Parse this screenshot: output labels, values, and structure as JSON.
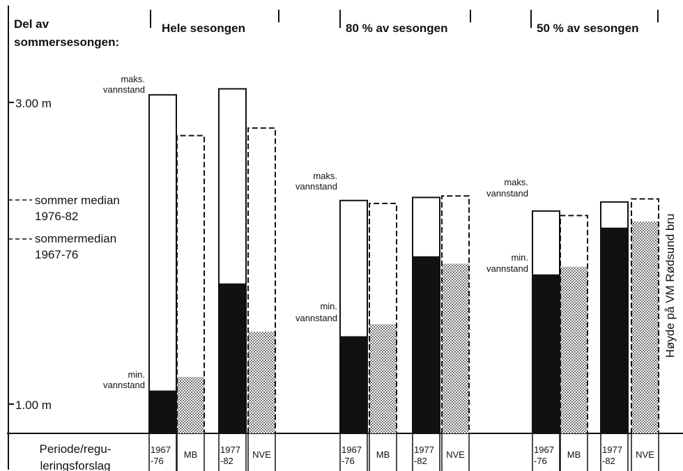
{
  "chart_data": {
    "type": "bar",
    "header_label": [
      "Del av",
      "sommersesongen:"
    ],
    "column_groups": [
      "Hele sesongen",
      "80 % av sesongen",
      "50 % av sesongen"
    ],
    "y_ticks": [
      {
        "label": "3.00 m",
        "value": 3.0
      },
      {
        "label": "1.00 m",
        "value": 1.0
      }
    ],
    "reference_lines": [
      {
        "label": [
          "sommer median",
          "1976-82"
        ],
        "value": 2.27
      },
      {
        "label": [
          "sommermedian",
          "1967-76"
        ],
        "value": 2.0
      }
    ],
    "max_label": [
      "maks.",
      "vannstand"
    ],
    "min_label": [
      "min.",
      "vannstand"
    ],
    "side_label": "Høyde på VM Rødsund bru",
    "row_label": [
      "Periode/regu-",
      "leringsforslag"
    ],
    "bars": [
      {
        "group": "Hele sesongen",
        "period": [
          "1967",
          "-76"
        ],
        "max": 3.05,
        "min": 1.09,
        "style": "black"
      },
      {
        "group": "Hele sesongen",
        "period": [
          "MB"
        ],
        "max": 2.78,
        "min": 1.18,
        "style": "dotted"
      },
      {
        "group": "Hele sesongen",
        "period": [
          "1977",
          "-82"
        ],
        "max": 3.09,
        "min": 1.8,
        "style": "black"
      },
      {
        "group": "Hele sesongen",
        "period": [
          "NVE"
        ],
        "max": 2.83,
        "min": 1.48,
        "style": "dotted"
      },
      {
        "group": "80 % av sesongen",
        "period": [
          "1967",
          "-76"
        ],
        "max": 2.35,
        "min": 1.45,
        "style": "black"
      },
      {
        "group": "80 % av sesongen",
        "period": [
          "MB"
        ],
        "max": 2.33,
        "min": 1.53,
        "style": "dotted"
      },
      {
        "group": "80 % av sesongen",
        "period": [
          "1977",
          "-82"
        ],
        "max": 2.37,
        "min": 1.98,
        "style": "black"
      },
      {
        "group": "80 % av sesongen",
        "period": [
          "NVE"
        ],
        "max": 2.38,
        "min": 1.93,
        "style": "dotted"
      },
      {
        "group": "50 % av sesongen",
        "period": [
          "1967",
          "-76"
        ],
        "max": 2.28,
        "min": 1.86,
        "style": "black"
      },
      {
        "group": "50 % av sesongen",
        "period": [
          "MB"
        ],
        "max": 2.25,
        "min": 1.91,
        "style": "dotted"
      },
      {
        "group": "50 % av sesongen",
        "period": [
          "1977",
          "-82"
        ],
        "max": 2.34,
        "min": 2.17,
        "style": "black"
      },
      {
        "group": "50 % av sesongen",
        "period": [
          "NVE"
        ],
        "max": 2.36,
        "min": 2.21,
        "style": "dotted"
      }
    ]
  }
}
